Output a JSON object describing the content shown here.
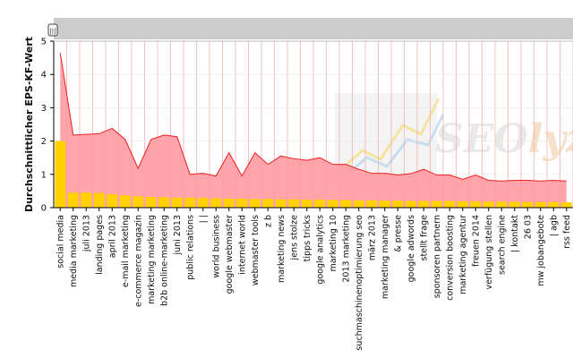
{
  "chart_data": {
    "type": "area",
    "ylabel": "Durchschnittlicher EPS-KF-Wert",
    "xlabel": "",
    "ylim": [
      0,
      5
    ],
    "yticks": [
      "0",
      "1",
      "2",
      "3",
      "4",
      "5"
    ],
    "grid": true,
    "categories": [
      "social media",
      "media marketing",
      "juli 2013",
      "landing pages",
      "april 2013",
      "e-mail marketing",
      "e-commerce magazin",
      "marketing marketing",
      "b2b online-marketing",
      "juni 2013",
      "public relations",
      "| |",
      "world business",
      "google webmaster",
      "internet world",
      "webmaster tools",
      "z b",
      "marketing news",
      "jens stolze",
      "tipps tricks",
      "google analytics",
      "marketing 10",
      "2013 marketing",
      "suchmaschinenoptimierung seo",
      "märz 2013",
      "marketing manager",
      "& presse",
      "google adwords",
      "stellt frage",
      "sponsoren partnern",
      "conversion boosting",
      "marketing agentur",
      "freuen 2014",
      "verfügung stellen",
      "search engine",
      "| kontakt",
      "26 03",
      "mw jobangebote",
      "| agb",
      "rss feed"
    ],
    "series": [
      {
        "type": "area",
        "color": "#ff9aa2",
        "line_color": "#ee2222",
        "values": [
          4.65,
          2.18,
          2.2,
          2.22,
          2.38,
          2.05,
          1.18,
          2.05,
          2.18,
          2.13,
          1.0,
          1.03,
          0.95,
          1.65,
          0.95,
          1.65,
          1.3,
          1.55,
          1.47,
          1.42,
          1.5,
          1.3,
          1.3,
          1.15,
          1.03,
          1.03,
          0.98,
          1.02,
          1.15,
          0.98,
          0.98,
          0.85,
          0.98,
          0.82,
          0.8,
          0.82,
          0.82,
          0.8,
          0.82,
          0.8
        ]
      },
      {
        "type": "bar",
        "color": "#ffd200",
        "values": [
          2.0,
          0.45,
          0.45,
          0.44,
          0.4,
          0.37,
          0.34,
          0.32,
          0.31,
          0.3,
          0.3,
          0.29,
          0.28,
          0.27,
          0.27,
          0.26,
          0.26,
          0.25,
          0.25,
          0.24,
          0.24,
          0.23,
          0.23,
          0.22,
          0.22,
          0.21,
          0.21,
          0.2,
          0.2,
          0.2,
          0.2,
          0.19,
          0.19,
          0.18,
          0.18,
          0.18,
          0.17,
          0.17,
          0.17,
          0.16
        ]
      }
    ]
  },
  "watermark": {
    "text_a": "SEO",
    "text_b": "lyze",
    "color_a": "#d8d8d8",
    "color_b": "#f2c9a0"
  },
  "scrollbar": {
    "handle_glyph": "|||"
  },
  "colors": {
    "grid": "#f4b0b0",
    "frame": "#bdbdbd",
    "scroll_track": "#cccccc"
  }
}
